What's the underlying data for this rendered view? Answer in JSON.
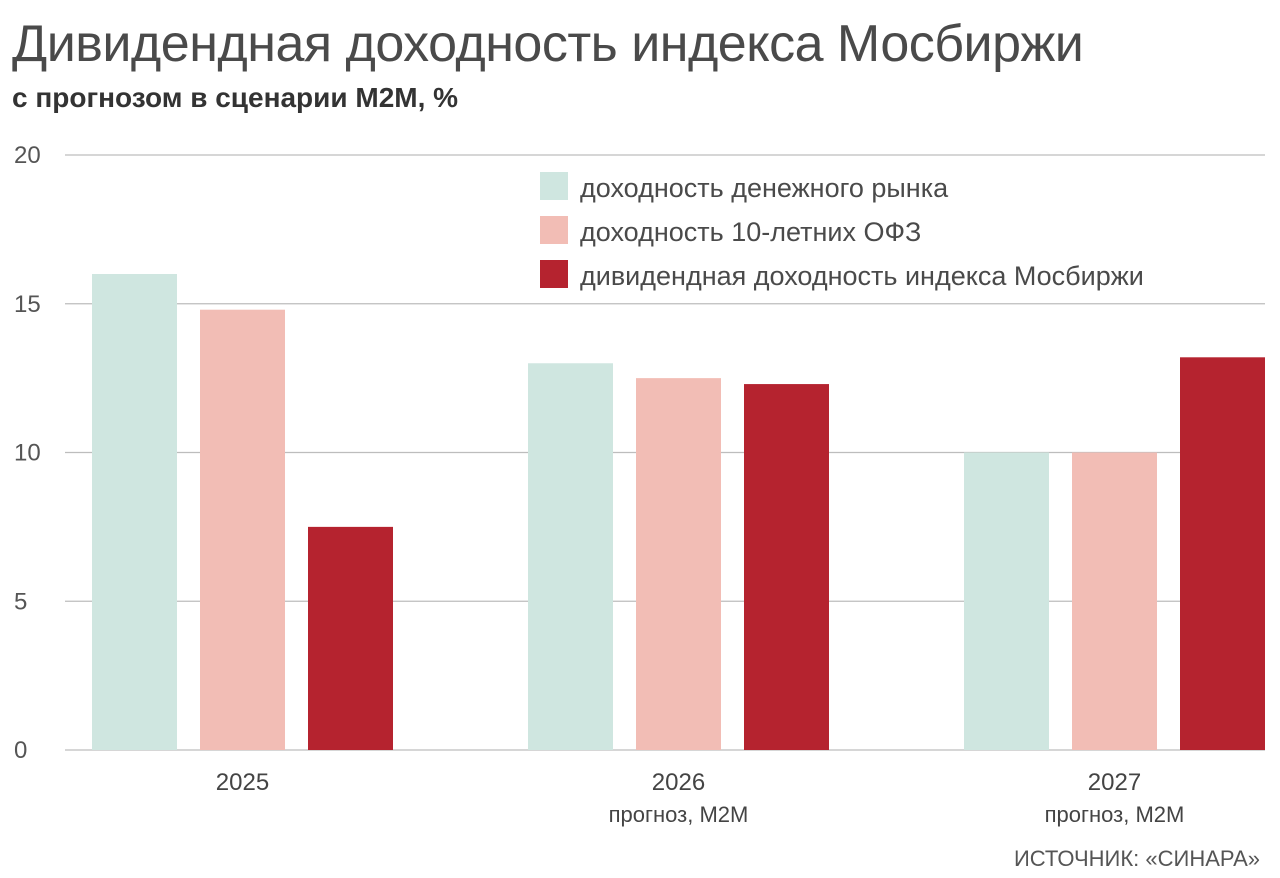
{
  "title": "Дивидендная доходность индекса Мосбиржи",
  "subtitle": "с прогнозом в сценарии М2М, %",
  "source": "ИСТОЧНИК: «СИНАРА»",
  "colors": {
    "money_market": "#cfe6e0",
    "ofz": "#f2bdb5",
    "dividend": "#b5232f",
    "grid": "#bdbdbd"
  },
  "chart_data": {
    "type": "bar",
    "categories": [
      "2025",
      "2026",
      "2027"
    ],
    "category_sublabels": [
      "",
      "прогноз, М2М",
      "прогноз, М2М"
    ],
    "series": [
      {
        "name": "доходность денежного рынка",
        "color": "#cfe6e0",
        "values": [
          16,
          13,
          10
        ]
      },
      {
        "name": "доходность 10-летних ОФЗ",
        "color": "#f2bdb5",
        "values": [
          14.8,
          12.5,
          10
        ]
      },
      {
        "name": "дивидендная доходность индекса Мосбиржи",
        "color": "#b5232f",
        "values": [
          7.5,
          12.3,
          13.2
        ]
      }
    ],
    "yticks": [
      0,
      5,
      10,
      15,
      20
    ],
    "ylim": [
      0,
      20
    ],
    "xlabel": "",
    "ylabel": "",
    "grid": true,
    "legend_position": "top-right"
  }
}
